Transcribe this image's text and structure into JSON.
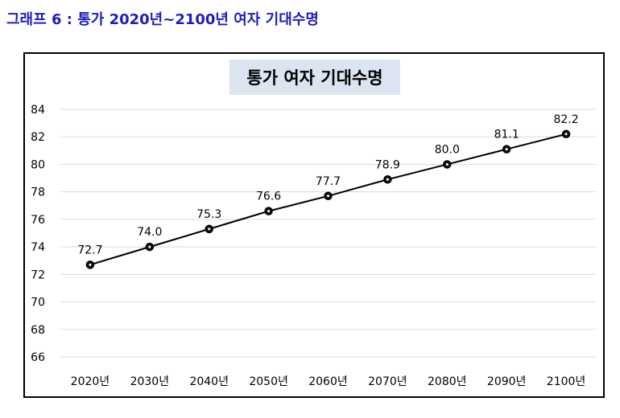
{
  "page": {
    "caption": "그래프 6 : 통가 2020년~2100년 여자 기대수명"
  },
  "colors": {
    "caption": "#1f1fb8",
    "title_bg": "#dce3f1",
    "line": "#000000",
    "grid": "#d9d9d9"
  },
  "chart_data": {
    "type": "line",
    "title": "통가 여자 기대수명",
    "xlabel": "",
    "ylabel": "",
    "categories": [
      "2020년",
      "2030년",
      "2040년",
      "2050년",
      "2060년",
      "2070년",
      "2080년",
      "2090년",
      "2100년"
    ],
    "series": [
      {
        "values": [
          72.7,
          74.0,
          75.3,
          76.6,
          77.7,
          78.9,
          80.0,
          81.1,
          82.2
        ]
      }
    ],
    "data_labels": [
      "72.7",
      "74.0",
      "75.3",
      "76.6",
      "77.7",
      "78.9",
      "80.0",
      "81.1",
      "82.2"
    ],
    "yticks": [
      66,
      68,
      70,
      72,
      74,
      76,
      78,
      80,
      82,
      84
    ],
    "ylim": [
      66,
      84
    ],
    "grid": true,
    "legend": "none"
  }
}
